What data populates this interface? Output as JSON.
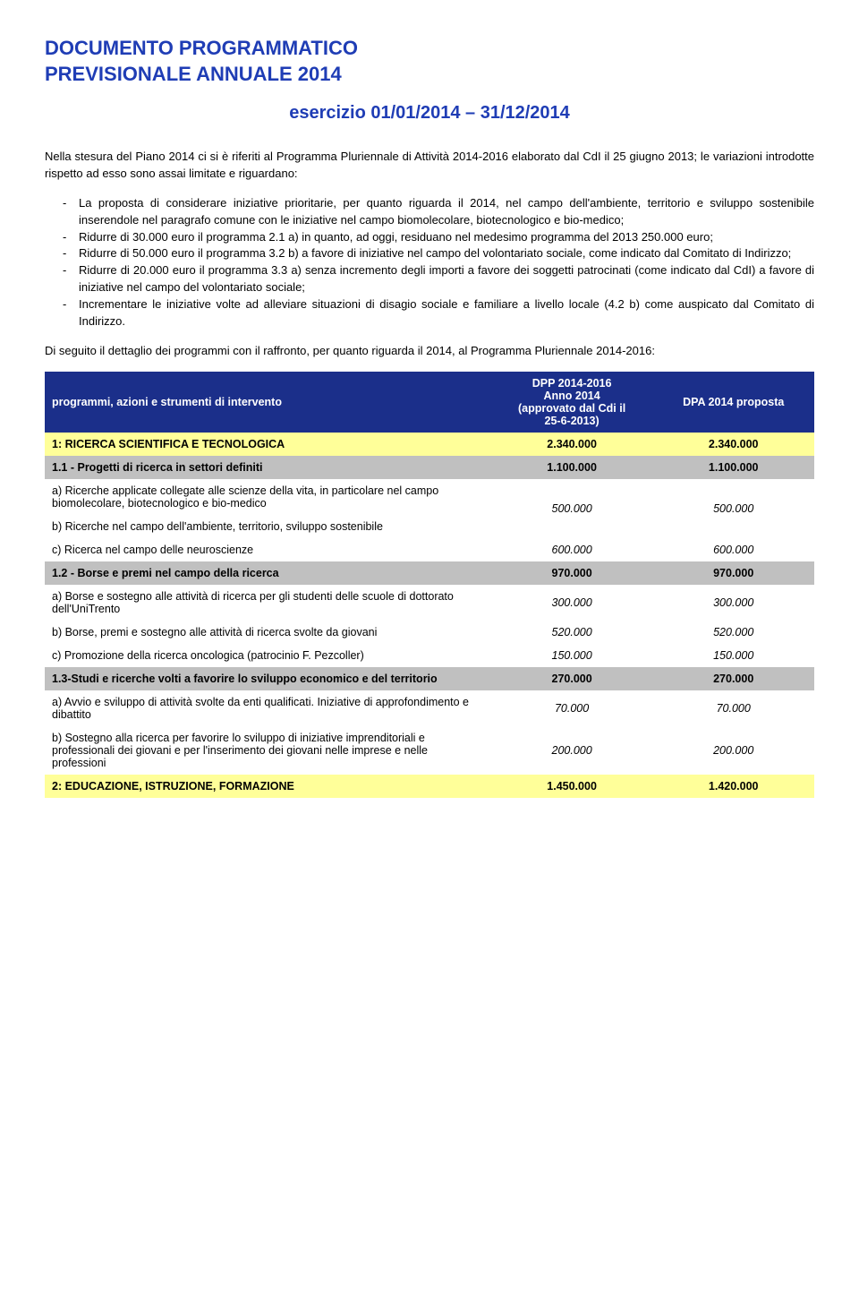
{
  "header": {
    "title_line1": "DOCUMENTO PROGRAMMATICO",
    "title_line2": "PREVISIONALE ANNUALE 2014",
    "subtitle": "esercizio 01/01/2014 – 31/12/2014"
  },
  "intro": "Nella stesura del Piano 2014 ci si è riferiti al Programma Pluriennale di Attività 2014-2016 elaborato dal CdI il 25 giugno 2013; le variazioni introdotte rispetto ad esso sono assai limitate e riguardano:",
  "bullets": [
    "La proposta di considerare iniziative prioritarie, per quanto riguarda il 2014, nel campo dell'ambiente, territorio e sviluppo sostenibile inserendole nel paragrafo comune con le iniziative nel campo biomolecolare, biotecnologico e bio-medico;",
    "Ridurre di 30.000 euro il programma 2.1 a) in quanto, ad oggi, residuano nel medesimo programma del 2013 250.000 euro;",
    "Ridurre di 50.000 euro il programma 3.2 b) a favore di iniziative nel campo del volontariato sociale, come indicato dal Comitato di Indirizzo;",
    "Ridurre di 20.000 euro il programma 3.3 a) senza incremento degli importi a favore dei soggetti patrocinati (come indicato dal CdI) a favore di iniziative nel campo del volontariato sociale;",
    "Incrementare le iniziative volte ad alleviare situazioni di disagio sociale e familiare a livello locale (4.2 b) come auspicato dal Comitato di Indirizzo."
  ],
  "follow": "Di seguito il dettaglio dei programmi con il raffronto, per quanto riguarda il 2014, al Programma Pluriennale 2014-2016:",
  "table": {
    "header_col1": "programmi, azioni  e strumenti di intervento",
    "header_col2": "DPP 2014-2016\nAnno 2014\n(approvato dal Cdi il\n25-6-2013)",
    "header_col3": "DPA 2014 proposta",
    "rows": [
      {
        "type": "section",
        "label": "1: RICERCA SCIENTIFICA E TECNOLOGICA",
        "v1": "2.340.000",
        "v2": "2.340.000"
      },
      {
        "type": "subsection",
        "label": "1.1 - Progetti di ricerca in settori definiti",
        "v1": "1.100.000",
        "v2": "1.100.000"
      },
      {
        "type": "data2",
        "label_a": "a) Ricerche applicate collegate alle scienze della vita, in particolare nel campo biomolecolare, biotecnologico e bio-medico",
        "label_b": "b) Ricerche nel campo dell'ambiente, territorio, sviluppo sostenibile",
        "v1": "500.000",
        "v2": "500.000"
      },
      {
        "type": "data",
        "label": "c) Ricerca nel campo delle neuroscienze",
        "v1": "600.000",
        "v2": "600.000"
      },
      {
        "type": "subsection",
        "label": "1.2 - Borse e premi nel campo della ricerca",
        "v1": "970.000",
        "v2": "970.000"
      },
      {
        "type": "data",
        "label": "a) Borse e sostegno alle attività di ricerca per gli studenti delle scuole di dottorato dell'UniTrento",
        "v1": "300.000",
        "v2": "300.000"
      },
      {
        "type": "data",
        "label": "b) Borse, premi e sostegno alle attività di ricerca svolte da giovani",
        "v1": "520.000",
        "v2": "520.000"
      },
      {
        "type": "data",
        "label": "c) Promozione della ricerca oncologica (patrocinio F. Pezcoller)",
        "v1": "150.000",
        "v2": "150.000"
      },
      {
        "type": "subsection",
        "label": "1.3-Studi e ricerche volti a favorire lo sviluppo economico e del territorio",
        "v1": "270.000",
        "v2": "270.000"
      },
      {
        "type": "data",
        "label": "a) Avvio e sviluppo di attività svolte da enti qualificati. Iniziative di approfondimento e dibattito",
        "v1": "70.000",
        "v2": "70.000"
      },
      {
        "type": "data",
        "label": "b) Sostegno alla ricerca per favorire lo sviluppo di iniziative imprenditoriali e professionali dei giovani e per l'inserimento dei giovani nelle imprese e nelle professioni",
        "v1": "200.000",
        "v2": "200.000"
      },
      {
        "type": "section",
        "label": "2: EDUCAZIONE, ISTRUZIONE, FORMAZIONE",
        "v1": "1.450.000",
        "v2": "1.420.000"
      }
    ]
  },
  "colors": {
    "title": "#1f3db5",
    "table_header_bg": "#1b2f8a",
    "section_bg": "#ffff99",
    "subsection_bg": "#c0c0c0",
    "data_bg": "#ffffff"
  }
}
